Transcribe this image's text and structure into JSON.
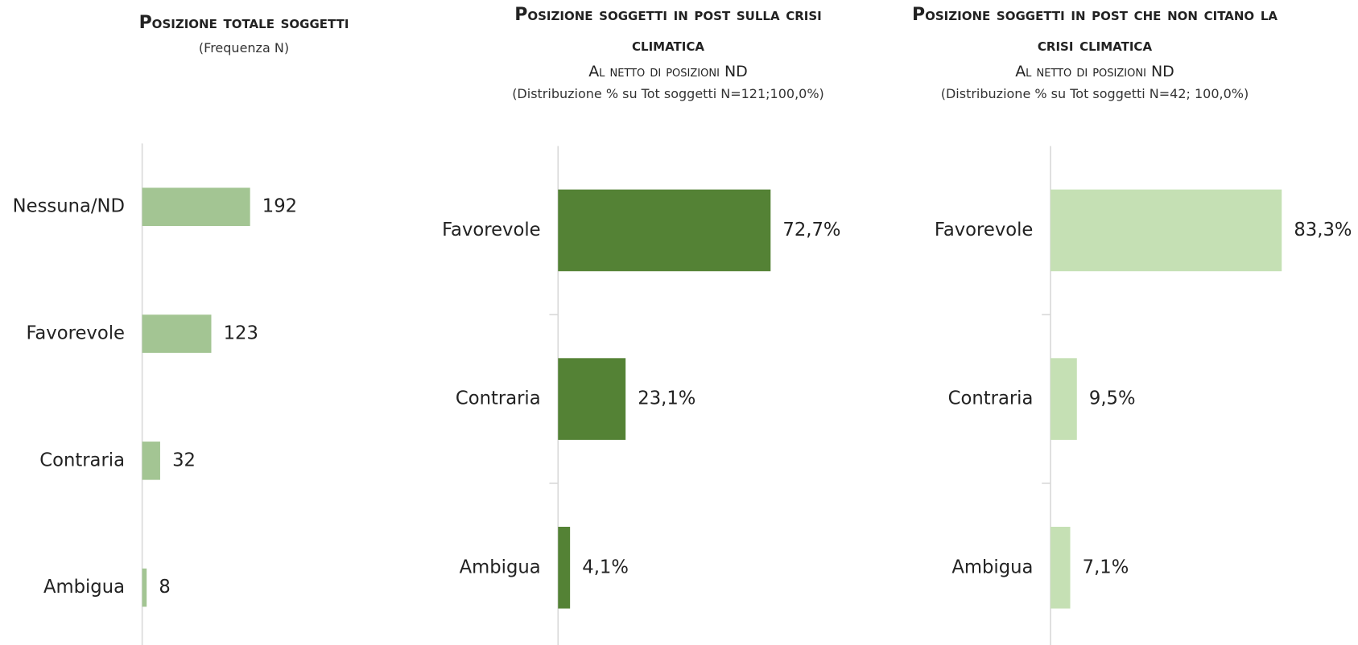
{
  "chart_data": [
    {
      "type": "bar",
      "orientation": "horizontal",
      "title": "Posizione totale  soggetti",
      "subtitle": "(Frequenza N)",
      "categories": [
        "Nessuna/ND",
        "Favorevole",
        "Contraria",
        "Ambigua"
      ],
      "values": [
        192,
        123,
        32,
        8
      ],
      "color": "#a3c593",
      "xlim": [
        0,
        500
      ]
    },
    {
      "type": "bar",
      "orientation": "horizontal",
      "title": "Posizione soggetti in post sulla crisi climatica",
      "subtitle": "Al netto di posizioni ND",
      "note": "(Distribuzione % su Tot soggetti N=121;100,0%)",
      "categories": [
        "Favorevole",
        "Contraria",
        "Ambigua"
      ],
      "values": [
        72.7,
        23.1,
        4.1
      ],
      "value_labels": [
        "72,7%",
        "23,1%",
        "4,1%"
      ],
      "color": "#548235",
      "xlim": [
        0,
        100
      ]
    },
    {
      "type": "bar",
      "orientation": "horizontal",
      "title": "Posizione soggetti in post che non citano la crisi climatica",
      "subtitle": "Al netto di posizioni ND",
      "note": "(Distribuzione % su Tot soggetti N=42; 100,0%)",
      "categories": [
        "Favorevole",
        "Contraria",
        "Ambigua"
      ],
      "values": [
        83.3,
        9.5,
        7.1
      ],
      "value_labels": [
        "83,3%",
        "9,5%",
        "7,1%"
      ],
      "color": "#c5e0b4",
      "xlim": [
        0,
        100
      ]
    }
  ]
}
